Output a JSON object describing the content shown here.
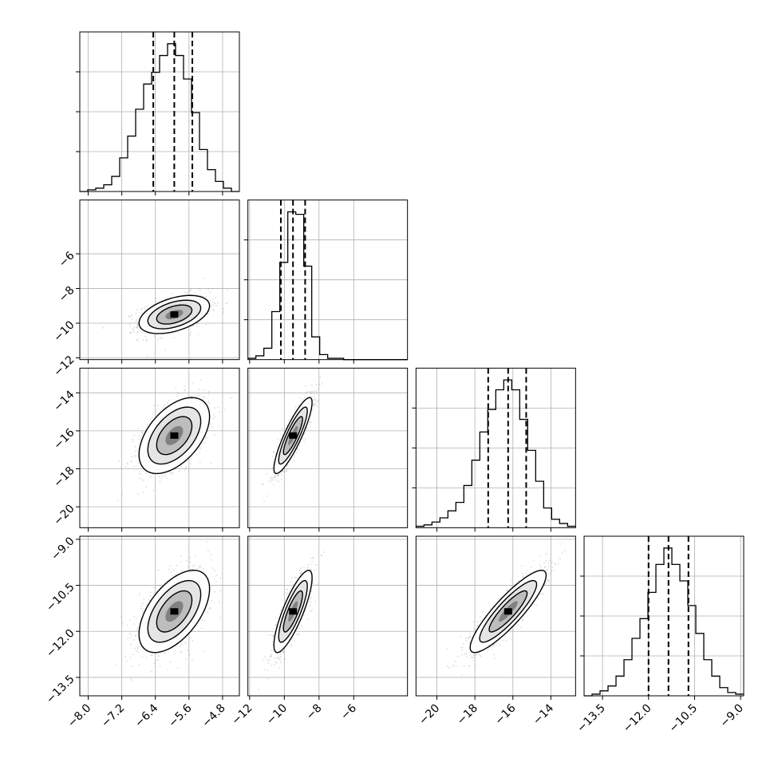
{
  "chart_data": {
    "type": "corner",
    "parameters": 4,
    "axes": [
      {
        "range": [
          -8.2,
          -4.4
        ],
        "ticks": [
          "−8.0",
          "−7.2",
          "−6.4",
          "−5.6",
          "−4.8"
        ],
        "tick_values": [
          -8.0,
          -7.2,
          -6.4,
          -5.6,
          -4.8
        ]
      },
      {
        "range": [
          -12.1,
          -2.9
        ],
        "ticks": [
          "−12",
          "−10",
          "−8",
          "−6"
        ],
        "tick_values": [
          -12,
          -10,
          -8,
          -6
        ]
      },
      {
        "range": [
          -21.1,
          -12.7
        ],
        "ticks": [
          "−20",
          "−18",
          "−16",
          "−14"
        ],
        "tick_values": [
          -20,
          -18,
          -16,
          -14
        ]
      },
      {
        "range": [
          -14.1,
          -8.9
        ],
        "ticks": [
          "−13.5",
          "−12.0",
          "−10.5",
          "−9.0"
        ],
        "tick_values": [
          -13.5,
          -12.0,
          -10.5,
          -9.0
        ]
      }
    ],
    "histograms": [
      {
        "quantiles": [
          -6.45,
          -5.95,
          -5.52
        ],
        "edges": [
          -8.2,
          -8.01,
          -7.82,
          -7.63,
          -7.44,
          -7.25,
          -7.06,
          -6.87,
          -6.68,
          -6.49,
          -6.3,
          -6.11,
          -5.92,
          -5.73,
          -5.54,
          -5.35,
          -5.16,
          -4.97,
          -4.78,
          -4.59,
          -4.4
        ],
        "counts": [
          0,
          1,
          2,
          4,
          9,
          20,
          33,
          49,
          64,
          71,
          81,
          88,
          81,
          67,
          47,
          25,
          13,
          6,
          2,
          0
        ]
      },
      {
        "quantiles": [
          -10.2,
          -9.5,
          -8.8
        ],
        "edges": [
          -12.1,
          -11.64,
          -11.18,
          -10.72,
          -10.26,
          -9.8,
          -9.34,
          -8.88,
          -8.42,
          -7.96,
          -7.5,
          -7.04,
          -6.58,
          -6.12,
          -5.66,
          -5.2,
          -4.74,
          -4.28,
          -3.82,
          -3.36,
          -2.9
        ],
        "counts": [
          1,
          3,
          9,
          38,
          77,
          117,
          115,
          74,
          18,
          4,
          1,
          1,
          0,
          0,
          0,
          0,
          0,
          0,
          0,
          0
        ]
      },
      {
        "quantiles": [
          -17.3,
          -16.25,
          -15.3
        ],
        "edges": [
          -21.1,
          -20.68,
          -20.26,
          -19.84,
          -19.42,
          -19.0,
          -18.58,
          -18.16,
          -17.74,
          -17.32,
          -16.9,
          -16.48,
          -16.06,
          -15.64,
          -15.22,
          -14.8,
          -14.38,
          -13.96,
          -13.54,
          -13.12,
          -12.7
        ],
        "counts": [
          1,
          2,
          4,
          7,
          12,
          18,
          30,
          48,
          68,
          84,
          98,
          105,
          98,
          77,
          55,
          33,
          14,
          6,
          3,
          1
        ]
      },
      {
        "quantiles": [
          -12.0,
          -11.35,
          -10.7
        ],
        "edges": [
          -14.1,
          -13.84,
          -13.58,
          -13.32,
          -13.06,
          -12.8,
          -12.54,
          -12.28,
          -12.02,
          -11.76,
          -11.5,
          -11.24,
          -10.98,
          -10.72,
          -10.46,
          -10.2,
          -9.94,
          -9.68,
          -9.42,
          -9.16,
          -8.9
        ],
        "counts": [
          0,
          1,
          3,
          6,
          12,
          22,
          35,
          47,
          63,
          80,
          90,
          80,
          70,
          55,
          38,
          22,
          12,
          5,
          2,
          1
        ]
      }
    ],
    "pairs": [
      {
        "row": 1,
        "col": 0,
        "mean": [
          -5.95,
          -9.5
        ],
        "std": [
          0.42,
          0.55
        ],
        "rho": 0.45
      },
      {
        "row": 2,
        "col": 0,
        "mean": [
          -5.95,
          -16.25
        ],
        "std": [
          0.42,
          1.0
        ],
        "rho": 0.5
      },
      {
        "row": 2,
        "col": 1,
        "mean": [
          -9.5,
          -16.25
        ],
        "std": [
          0.55,
          1.0
        ],
        "rho": 0.87
      },
      {
        "row": 3,
        "col": 0,
        "mean": [
          -5.95,
          -11.35
        ],
        "std": [
          0.42,
          0.67
        ],
        "rho": 0.55
      },
      {
        "row": 3,
        "col": 1,
        "mean": [
          -9.5,
          -11.35
        ],
        "std": [
          0.55,
          0.67
        ],
        "rho": 0.82
      },
      {
        "row": 3,
        "col": 2,
        "mean": [
          -16.25,
          -11.35
        ],
        "std": [
          1.0,
          0.67
        ],
        "rho": 0.88
      }
    ],
    "contour_levels_sigma": [
      0.5,
      1.0,
      1.5,
      2.0
    ],
    "grid": true,
    "xlabel": "",
    "ylabel": ""
  }
}
